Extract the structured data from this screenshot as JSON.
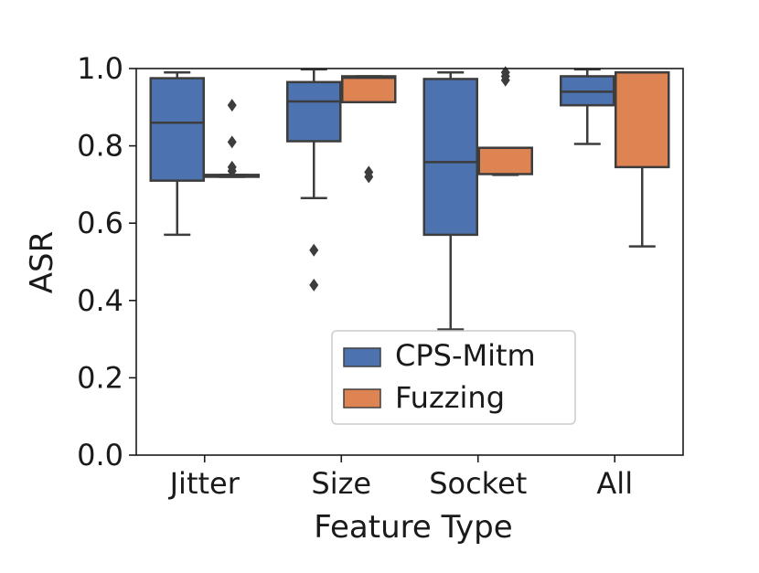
{
  "chart_data": {
    "type": "box",
    "title": "",
    "xlabel": "Feature Type",
    "ylabel": "ASR",
    "ylim": [
      0.0,
      1.0
    ],
    "yticks": [
      0.0,
      0.2,
      0.4,
      0.6,
      0.8,
      1.0
    ],
    "ytick_labels": [
      "0.0",
      "0.2",
      "0.4",
      "0.6",
      "0.8",
      "1.0"
    ],
    "categories": [
      "Jitter",
      "Size",
      "Socket",
      "All"
    ],
    "grid": false,
    "legend": {
      "position": "lower-center",
      "entries": [
        "CPS-Mitm",
        "Fuzzing"
      ]
    },
    "series": [
      {
        "name": "CPS-Mitm",
        "color": "#4c72b0",
        "boxes": [
          {
            "category": "Jitter",
            "whisker_low": 0.57,
            "q1": 0.71,
            "median": 0.86,
            "q3": 0.975,
            "whisker_high": 0.99,
            "outliers": []
          },
          {
            "category": "Size",
            "whisker_low": 0.665,
            "q1": 0.812,
            "median": 0.915,
            "q3": 0.965,
            "whisker_high": 0.998,
            "outliers": [
              0.53,
              0.44
            ]
          },
          {
            "category": "Socket",
            "whisker_low": 0.325,
            "q1": 0.57,
            "median": 0.758,
            "q3": 0.973,
            "whisker_high": 0.99,
            "outliers": []
          },
          {
            "category": "All",
            "whisker_low": 0.805,
            "q1": 0.905,
            "median": 0.94,
            "q3": 0.98,
            "whisker_high": 0.998,
            "outliers": []
          }
        ]
      },
      {
        "name": "Fuzzing",
        "color": "#dd8452",
        "boxes": [
          {
            "category": "Jitter",
            "whisker_low": 0.72,
            "q1": 0.72,
            "median": 0.722,
            "q3": 0.725,
            "whisker_high": 0.725,
            "outliers": [
              0.905,
              0.81,
              0.745,
              0.735
            ]
          },
          {
            "category": "Size",
            "whisker_low": 0.913,
            "q1": 0.913,
            "median": 0.976,
            "q3": 0.98,
            "whisker_high": 0.98,
            "outliers": [
              0.732,
              0.72
            ]
          },
          {
            "category": "Socket",
            "whisker_low": 0.725,
            "q1": 0.727,
            "median": 0.795,
            "q3": 0.795,
            "whisker_high": 0.795,
            "outliers": [
              0.99,
              0.98,
              0.97
            ]
          },
          {
            "category": "All",
            "whisker_low": 0.54,
            "q1": 0.745,
            "median": 0.99,
            "q3": 0.99,
            "whisker_high": 0.99,
            "outliers": []
          }
        ]
      }
    ]
  }
}
